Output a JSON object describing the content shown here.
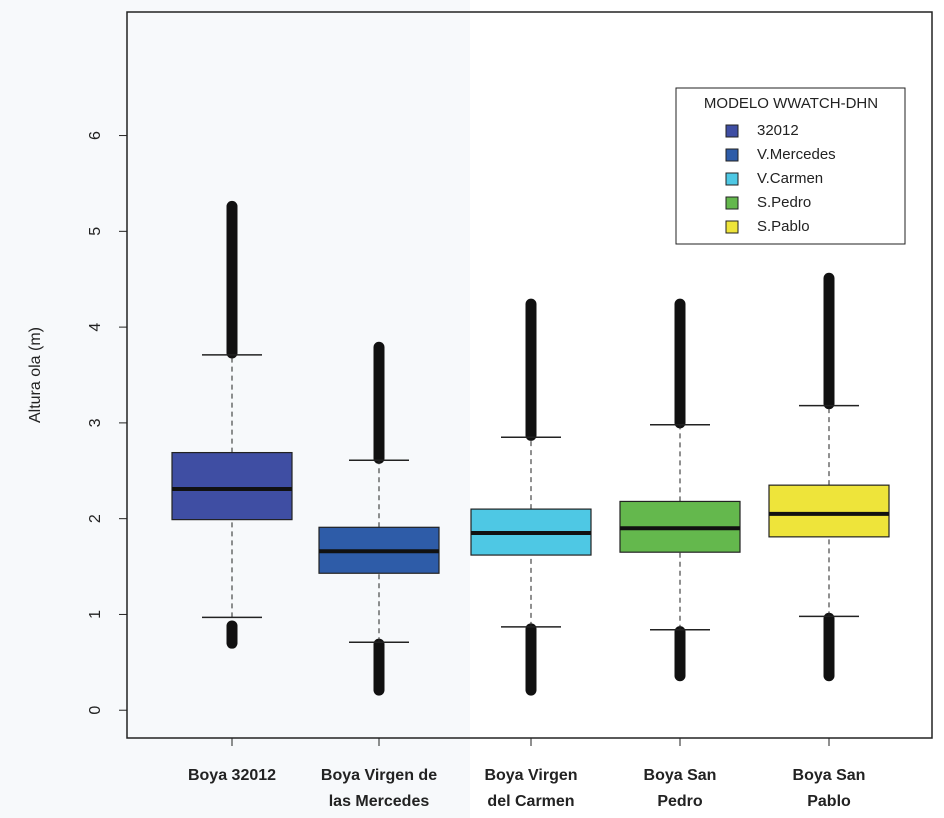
{
  "chart_data": {
    "type": "box",
    "y_label": "Altura ola (m)",
    "legend_title": "MODELO WWATCH-DHN",
    "legend_position": "top-right",
    "ylim": [
      -0.29,
      7.29
    ],
    "yticks": [
      0,
      1,
      2,
      3,
      4,
      5,
      6
    ],
    "boxes": [
      {
        "category": [
          "Boya 32012"
        ],
        "name": "32012",
        "color": "#3f4ea3",
        "whisker_low": 0.97,
        "q1": 1.99,
        "median": 2.31,
        "q3": 2.69,
        "whisker_high": 3.71,
        "outliers_low": [
          0.7,
          0.88
        ],
        "outliers_high": [
          3.73,
          5.26
        ]
      },
      {
        "category": [
          "Boya Virgen de",
          "las Mercedes"
        ],
        "name": "V.Mercedes",
        "color": "#2e5ca8",
        "whisker_low": 0.71,
        "q1": 1.43,
        "median": 1.66,
        "q3": 1.91,
        "whisker_high": 2.61,
        "outliers_low": [
          0.21,
          0.69
        ],
        "outliers_high": [
          2.63,
          3.79
        ]
      },
      {
        "category": [
          "Boya Virgen",
          "del Carmen"
        ],
        "name": "V.Carmen",
        "color": "#4ec8e4",
        "whisker_low": 0.87,
        "q1": 1.62,
        "median": 1.85,
        "q3": 2.1,
        "whisker_high": 2.85,
        "outliers_low": [
          0.21,
          0.85
        ],
        "outliers_high": [
          2.87,
          4.24
        ]
      },
      {
        "category": [
          "Boya San",
          "Pedro"
        ],
        "name": "S.Pedro",
        "color": "#64b84d",
        "whisker_low": 0.84,
        "q1": 1.65,
        "median": 1.9,
        "q3": 2.18,
        "whisker_high": 2.98,
        "outliers_low": [
          0.36,
          0.82
        ],
        "outliers_high": [
          3.0,
          4.24
        ]
      },
      {
        "category": [
          "Boya San",
          "Pablo"
        ],
        "name": "S.Pablo",
        "color": "#eee43a",
        "whisker_low": 0.98,
        "q1": 1.81,
        "median": 2.05,
        "q3": 2.35,
        "whisker_high": 3.18,
        "outliers_low": [
          0.36,
          0.96
        ],
        "outliers_high": [
          3.2,
          4.51
        ]
      }
    ]
  }
}
